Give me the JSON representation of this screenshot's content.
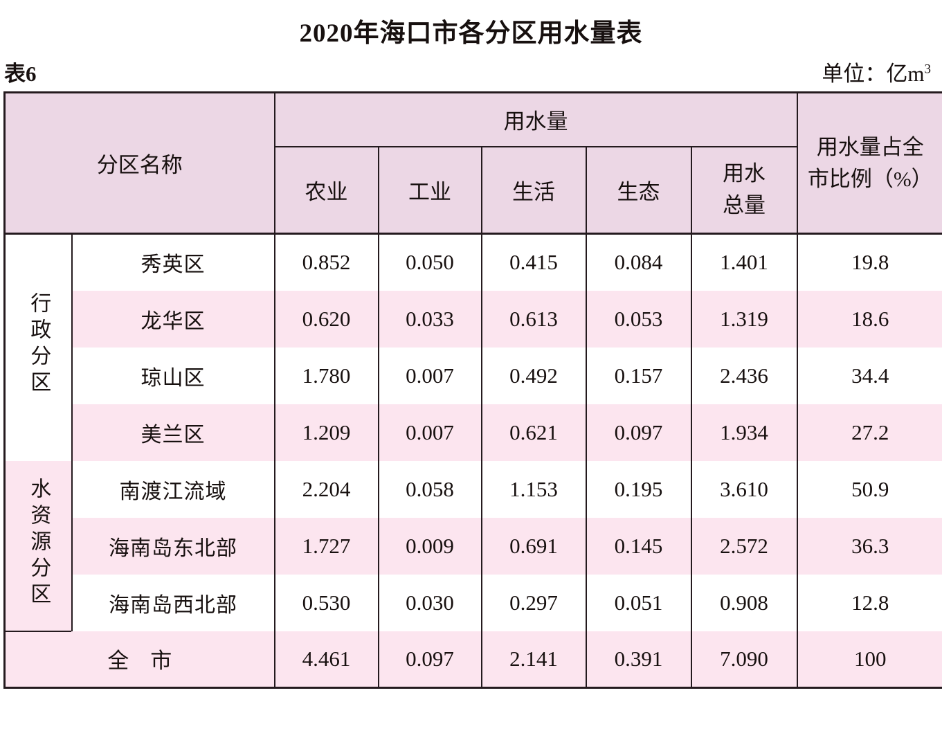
{
  "page": {
    "title": "2020年海口市各分区用水量表",
    "table_label": "表6",
    "unit_label": "单位：亿m",
    "unit_superscript": "3"
  },
  "table": {
    "header": {
      "region_name": "分区名称",
      "usage": "用水量",
      "sub_columns": [
        "农业",
        "工业",
        "生活",
        "生态"
      ],
      "total_line1": "用水",
      "total_line2": "总量",
      "percent_line1": "用水量占全",
      "percent_line2": "市比例（%）"
    },
    "groups": [
      {
        "label": "行政分区",
        "rows": [
          {
            "name": "秀英区",
            "values": [
              "0.852",
              "0.050",
              "0.415",
              "0.084",
              "1.401",
              "19.8"
            ]
          },
          {
            "name": "龙华区",
            "values": [
              "0.620",
              "0.033",
              "0.613",
              "0.053",
              "1.319",
              "18.6"
            ]
          },
          {
            "name": "琼山区",
            "values": [
              "1.780",
              "0.007",
              "0.492",
              "0.157",
              "2.436",
              "34.4"
            ]
          },
          {
            "name": "美兰区",
            "values": [
              "1.209",
              "0.007",
              "0.621",
              "0.097",
              "1.934",
              "27.2"
            ]
          }
        ]
      },
      {
        "label": "水资源分区",
        "rows": [
          {
            "name": "南渡江流域",
            "values": [
              "2.204",
              "0.058",
              "1.153",
              "0.195",
              "3.610",
              "50.9"
            ]
          },
          {
            "name": "海南岛东北部",
            "values": [
              "1.727",
              "0.009",
              "0.691",
              "0.145",
              "2.572",
              "36.3"
            ]
          },
          {
            "name": "海南岛西北部",
            "values": [
              "0.530",
              "0.030",
              "0.297",
              "0.051",
              "0.908",
              "12.8"
            ]
          }
        ]
      }
    ],
    "total_row": {
      "name": "全　市",
      "values": [
        "4.461",
        "0.097",
        "2.141",
        "0.391",
        "7.090",
        "100"
      ]
    }
  },
  "colors": {
    "line": "#241a1e",
    "header_bg": "#ecd7e5",
    "row_pink": "#fce5ef",
    "text": "#17100f"
  }
}
